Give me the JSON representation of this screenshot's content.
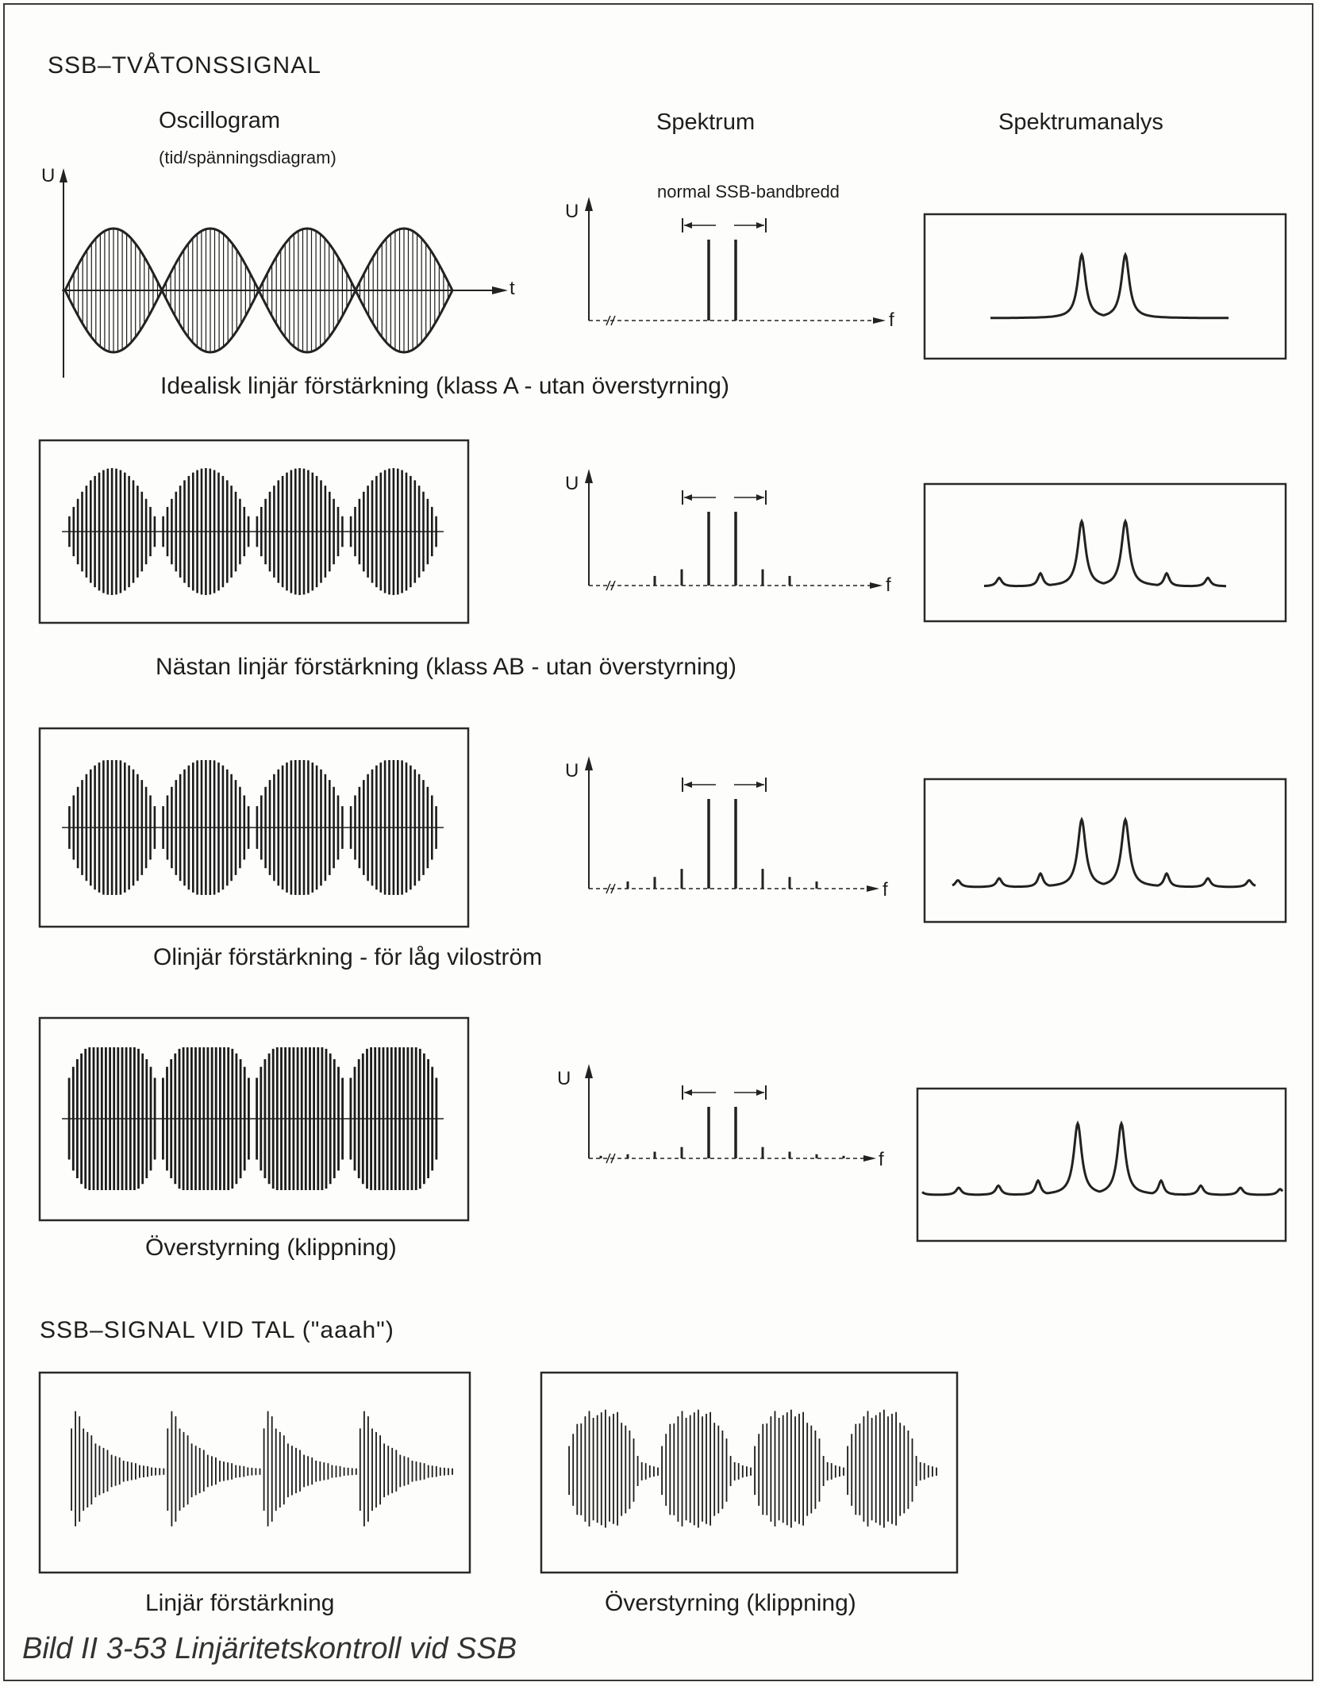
{
  "section_title": "SSB–TVÅTONSSIGNAL",
  "column_headers": {
    "oscillogram": "Oscillogram",
    "oscillogram_sub": "(tid/spänningsdiagram)",
    "spectrum": "Spektrum",
    "spectrum_analysis": "Spektrumanalys"
  },
  "bandwidth_label": "normal SSB-bandbredd",
  "axis_labels": {
    "u": "U",
    "t": "t",
    "f": "f"
  },
  "rows": [
    {
      "caption": "Idealisk linjär förstärkning (klass A - utan överstyrning)",
      "sidebands": 0,
      "envelope": "sine"
    },
    {
      "caption": "Nästan linjär förstärkning (klass AB - utan överstyrning)",
      "sidebands": 2,
      "envelope": "rounded"
    },
    {
      "caption": "Olinjär förstärkning  -  för låg viloström",
      "sidebands": 3,
      "envelope": "pinched"
    },
    {
      "caption": "Överstyrning (klippning)",
      "sidebands": 4,
      "envelope": "clipped"
    }
  ],
  "speech_section_title": "SSB–SIGNAL VID TAL  (\"aaah\")",
  "speech_panels": [
    {
      "caption": "Linjär förstärkning"
    },
    {
      "caption": "Överstyrning (klippning)"
    }
  ],
  "figure_caption": "Bild II 3-53 Linjäritetskontroll vid SSB"
}
